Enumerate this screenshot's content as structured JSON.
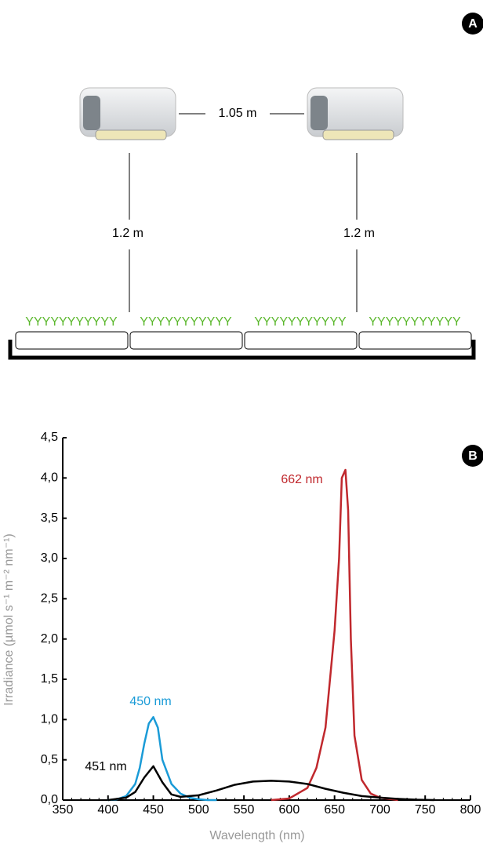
{
  "diagram": {
    "panel_label": "A",
    "spacing": "1.05 m",
    "height_left": "1.2 m",
    "height_right": "1.2 m",
    "plants": [
      "YYYYYYYYYYY",
      "YYYYYYYYYYY",
      "YYYYYYYYYYY",
      "YYYYYYYYYYY"
    ]
  },
  "chart_data": {
    "type": "line",
    "panel_label": "B",
    "x_label": "Wavelength (nm)",
    "y_label": "Irradiance (µmol s⁻¹ m⁻² nm⁻¹)",
    "xlim": [
      350,
      800
    ],
    "xticks": [
      350,
      400,
      450,
      500,
      550,
      600,
      650,
      700,
      750,
      800
    ],
    "ylim": [
      0,
      4.5
    ],
    "yticks": [
      {
        "value": 0,
        "label": "0,0"
      },
      {
        "value": 0.5,
        "label": "0,5"
      },
      {
        "value": 1,
        "label": "1,0"
      },
      {
        "value": 1.5,
        "label": "1,5"
      },
      {
        "value": 2,
        "label": "2,0"
      },
      {
        "value": 2.5,
        "label": "2,5"
      },
      {
        "value": 3,
        "label": "3,0"
      },
      {
        "value": 3.5,
        "label": "3,5"
      },
      {
        "value": 4,
        "label": "4,0"
      },
      {
        "value": 4.5,
        "label": "4,5"
      }
    ],
    "series": [
      {
        "color": "#1a9bd7",
        "x": [
          400,
          410,
          420,
          430,
          435,
          440,
          445,
          450,
          455,
          460,
          470,
          480,
          490,
          500,
          510,
          520
        ],
        "values": [
          0,
          0.01,
          0.05,
          0.2,
          0.4,
          0.7,
          0.95,
          1.03,
          0.9,
          0.5,
          0.2,
          0.08,
          0.03,
          0.01,
          0,
          0
        ]
      },
      {
        "color": "#c0282d",
        "x": [
          580,
          600,
          620,
          630,
          640,
          645,
          650,
          655,
          658,
          662,
          665,
          668,
          672,
          680,
          690,
          700,
          720
        ],
        "values": [
          0,
          0.02,
          0.15,
          0.4,
          0.9,
          1.5,
          2.1,
          3.0,
          4.0,
          4.1,
          3.6,
          2.0,
          0.8,
          0.25,
          0.08,
          0.03,
          0
        ]
      },
      {
        "color": "#000000",
        "x": [
          400,
          420,
          430,
          440,
          450,
          460,
          470,
          480,
          500,
          520,
          540,
          560,
          580,
          600,
          620,
          640,
          660,
          680,
          700,
          720,
          740,
          760
        ],
        "values": [
          0,
          0.03,
          0.1,
          0.28,
          0.42,
          0.22,
          0.07,
          0.04,
          0.06,
          0.12,
          0.19,
          0.23,
          0.24,
          0.23,
          0.2,
          0.14,
          0.09,
          0.05,
          0.03,
          0.015,
          0.005,
          0
        ]
      }
    ],
    "annotations": [
      {
        "text": "662 nm",
        "color": "#c0282d"
      },
      {
        "text": "450 nm",
        "color": "#1a9bd7"
      },
      {
        "text": "451 nm",
        "color": "#000000"
      }
    ]
  }
}
